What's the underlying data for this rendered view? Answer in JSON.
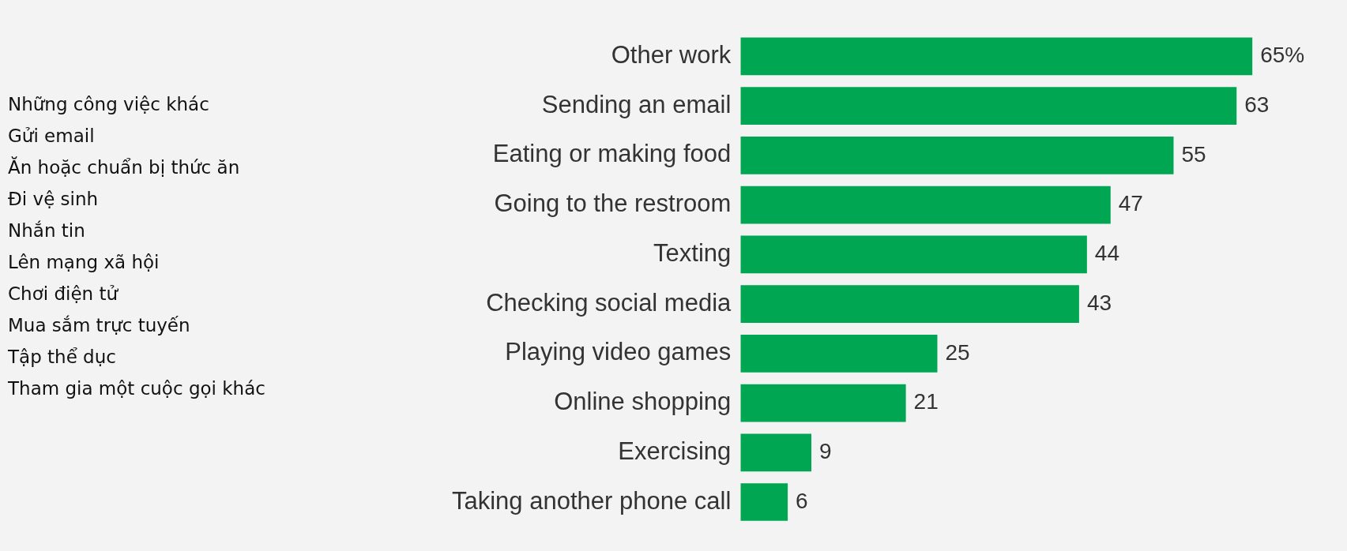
{
  "chart_data": {
    "type": "bar",
    "orientation": "horizontal",
    "categories": [
      "Other work",
      "Sending an email",
      "Eating or making food",
      "Going to the restroom",
      "Texting",
      "Checking social media",
      "Playing video games",
      "Online shopping",
      "Exercising",
      "Taking another phone call"
    ],
    "values": [
      65,
      63,
      55,
      47,
      44,
      43,
      25,
      21,
      9,
      6
    ],
    "value_labels": [
      "65%",
      "63",
      "55",
      "47",
      "44",
      "43",
      "25",
      "21",
      "9",
      "6"
    ],
    "color": "#00a651",
    "grid": false,
    "legend": false,
    "tick_labels": "y",
    "annotations": [
      "Những công việc khác",
      "Gửi email",
      "Ăn hoặc chuẩn bị thức ăn",
      "Đi vệ sinh",
      "Nhắn tin",
      "Lên mạng xã hội",
      "Chơi điện tử",
      "Mua sắm trực tuyến",
      "Tập thể dục",
      "Tham gia một cuộc gọi khác"
    ]
  }
}
